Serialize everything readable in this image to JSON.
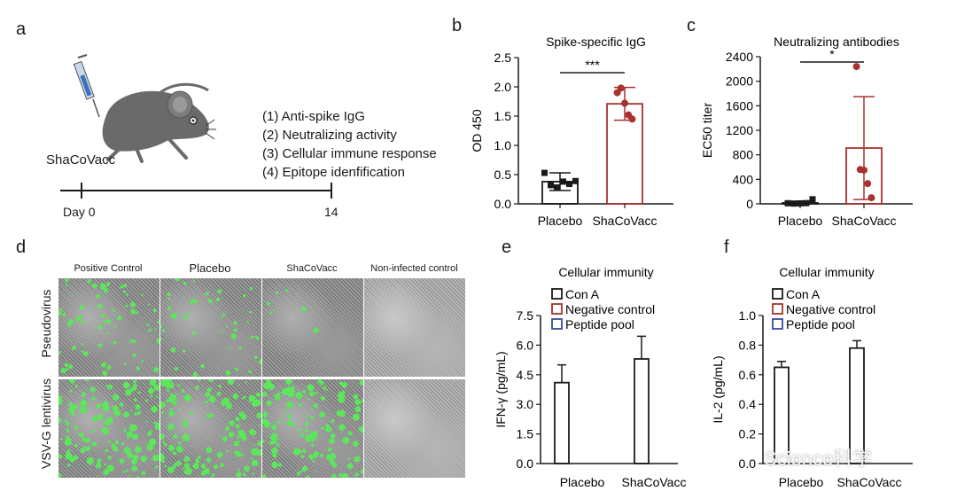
{
  "panels": {
    "a": "a",
    "b": "b",
    "c": "c",
    "d": "d",
    "e": "e",
    "f": "f"
  },
  "schematic": {
    "vaccine_label": "ShaCoVacc",
    "assays": [
      "(1) Anti-spike IgG",
      "(2) Neutralizing activity",
      "(3) Cellular immune response",
      "(4) Epitope idenfification"
    ],
    "timeline": {
      "start": "Day 0",
      "end": "14"
    }
  },
  "chart_data": [
    {
      "id": "b",
      "type": "bar",
      "title": "Spike-specific IgG",
      "ylabel": "OD 450",
      "categories": [
        "Placebo",
        "ShaCoVacc"
      ],
      "values": [
        0.38,
        1.71
      ],
      "errors": [
        0.15,
        0.28
      ],
      "points": [
        [
          0.53,
          0.32,
          0.28,
          0.38,
          0.34,
          0.39
        ],
        [
          1.9,
          1.98,
          1.72,
          1.52,
          1.45
        ]
      ],
      "colors": [
        "#1a1a1a",
        "#a8322f"
      ],
      "ylim": [
        0,
        2.5
      ],
      "yticks": [
        "0.0",
        "0.5",
        "1.0",
        "1.5",
        "2.0",
        "2.5"
      ],
      "tick_values": [
        0,
        0.5,
        1.0,
        1.5,
        2.0,
        2.5
      ],
      "significance": "***"
    },
    {
      "id": "c",
      "type": "bar",
      "title": "Neutralizing antibodies",
      "ylabel": "EC50 titer",
      "categories": [
        "Placebo",
        "ShaCoVacc"
      ],
      "values": [
        15,
        910
      ],
      "errors": [
        25,
        840
      ],
      "points": [
        [
          10,
          5,
          8,
          12,
          75
        ],
        [
          2240,
          560,
          550,
          330,
          100
        ]
      ],
      "colors": [
        "#1a1a1a",
        "#a8322f"
      ],
      "ylim": [
        0,
        2400
      ],
      "yticks": [
        "0",
        "400",
        "800",
        "1200",
        "1600",
        "2000",
        "2400"
      ],
      "tick_values": [
        0,
        400,
        800,
        1200,
        1600,
        2000,
        2400
      ],
      "significance": "*"
    },
    {
      "id": "e",
      "type": "bar",
      "title": "Cellular immunity",
      "ylabel": "IFN-γ (pg/mL)",
      "categories": [
        "Placebo",
        "ShaCoVacc"
      ],
      "series": [
        {
          "name": "Con A",
          "values": [
            4.1,
            5.3
          ],
          "errors": [
            0.9,
            1.15
          ],
          "color": "#1a1a1a"
        },
        {
          "name": "Negative control",
          "values": [
            0,
            0
          ],
          "errors": [
            0,
            0
          ],
          "color": "#a8322f"
        },
        {
          "name": "Peptide pool",
          "values": [
            0,
            0
          ],
          "errors": [
            0,
            0
          ],
          "color": "#3a4a9a"
        }
      ],
      "ylim": [
        0,
        7.5
      ],
      "yticks": [
        "0.0",
        "1.5",
        "3.0",
        "4.5",
        "6.0",
        "7.5"
      ],
      "tick_values": [
        0,
        1.5,
        3.0,
        4.5,
        6.0,
        7.5
      ]
    },
    {
      "id": "f",
      "type": "bar",
      "title": "Cellular immunity",
      "ylabel": "IL-2 (pg/mL)",
      "categories": [
        "Placebo",
        "ShaCoVacc"
      ],
      "series": [
        {
          "name": "Con A",
          "values": [
            0.65,
            0.78
          ],
          "errors": [
            0.04,
            0.05
          ],
          "color": "#1a1a1a"
        },
        {
          "name": "Negative control",
          "values": [
            0,
            0
          ],
          "errors": [
            0,
            0
          ],
          "color": "#a8322f"
        },
        {
          "name": "Peptide pool",
          "values": [
            0,
            0
          ],
          "errors": [
            0,
            0
          ],
          "color": "#3a4a9a"
        }
      ],
      "ylim": [
        0,
        1.0
      ],
      "yticks": [
        "0.0",
        "0.2",
        "0.4",
        "0.6",
        "0.8",
        "1.0"
      ],
      "tick_values": [
        0,
        0.2,
        0.4,
        0.6,
        0.8,
        1.0
      ]
    }
  ],
  "microscopy": {
    "columns": [
      "Positive Control",
      "Placebo",
      "ShaCoVacc",
      "Non-infected control"
    ],
    "rows": [
      "Pseudovirus",
      "VSV-G lentivirus"
    ],
    "fluorescence_density": [
      [
        0.5,
        0.35,
        0.05,
        0
      ],
      [
        1.0,
        0.9,
        0.9,
        0
      ]
    ],
    "fluorescence_color": "#5ce65c"
  },
  "watermark": "Science科学"
}
